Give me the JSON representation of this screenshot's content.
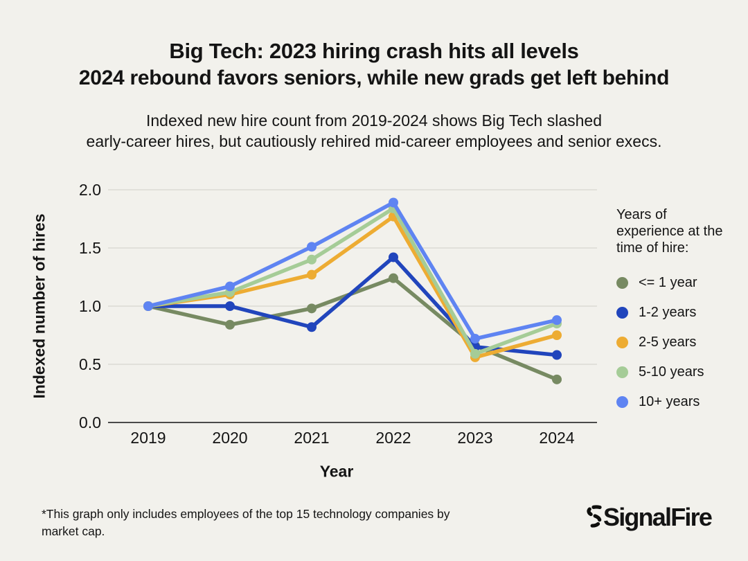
{
  "page": {
    "background": "#F2F1EC",
    "text_color": "#141414"
  },
  "header": {
    "title_line1": "Big Tech: 2023 hiring crash hits all levels",
    "title_line2": "2024 rebound favors seniors, while new grads get left behind",
    "description_line1": "Indexed new hire count from 2019-2024 shows Big Tech slashed",
    "description_line2": "early-career hires, but cautiously rehired mid-career employees and senior execs."
  },
  "chart_data": {
    "type": "line",
    "title": "",
    "xlabel": "Year",
    "ylabel": "Indexed number of hires",
    "categories": [
      "2019",
      "2020",
      "2021",
      "2022",
      "2023",
      "2024"
    ],
    "y_ticks": [
      "0.0",
      "0.5",
      "1.0",
      "1.5",
      "2.0"
    ],
    "ylim": [
      0.0,
      2.05
    ],
    "grid": "horizontal",
    "grid_color": "#DBDAD3",
    "axis_color": "#4A4A4A",
    "legend_position": "right",
    "series": [
      {
        "name": "<= 1 year",
        "color": "#778A62",
        "values": [
          1.0,
          0.84,
          0.98,
          1.24,
          0.66,
          0.37
        ]
      },
      {
        "name": "1-2 years",
        "color": "#2145BC",
        "values": [
          1.0,
          1.0,
          0.82,
          1.42,
          0.65,
          0.58
        ]
      },
      {
        "name": "2-5 years",
        "color": "#EDAC33",
        "values": [
          1.0,
          1.1,
          1.27,
          1.77,
          0.56,
          0.75
        ]
      },
      {
        "name": "5-10 years",
        "color": "#A5CC97",
        "values": [
          1.0,
          1.12,
          1.4,
          1.84,
          0.59,
          0.85
        ]
      },
      {
        "name": "10+ years",
        "color": "#5F84F2",
        "values": [
          1.0,
          1.17,
          1.51,
          1.89,
          0.72,
          0.88
        ]
      }
    ],
    "draw_order": [
      0,
      1,
      2,
      3,
      4
    ]
  },
  "legend": {
    "title": "Years of experience at the time of hire:"
  },
  "footer": {
    "note_line1": "*This graph only includes employees of the top 15 technology companies by",
    "note_line2": "market cap.",
    "logo_text": "SignalFire"
  }
}
